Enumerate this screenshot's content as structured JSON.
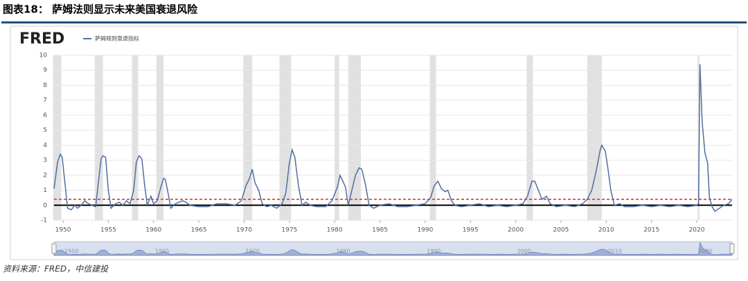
{
  "header": {
    "title": "图表18： 萨姆法则显示未来美国衰退风险"
  },
  "footer": {
    "source": "资料来源：FRED，中信建投"
  },
  "chart_data": {
    "type": "line",
    "logo": "FRED",
    "xlim": [
      1949,
      2023.9
    ],
    "ylim": [
      -1,
      10
    ],
    "xticks": [
      1950,
      1955,
      1960,
      1965,
      1970,
      1975,
      1980,
      1985,
      1990,
      1995,
      2000,
      2005,
      2010,
      2015,
      2020
    ],
    "yticks": [
      -1,
      0,
      1,
      2,
      3,
      4,
      5,
      6,
      7,
      8,
      9,
      10
    ],
    "navigator_xticks": [
      1950,
      1960,
      1970,
      1980,
      1990,
      2000,
      2010,
      2020
    ],
    "grid": true,
    "threshold": 0.4,
    "threshold_color": "#d62728",
    "recessions": [
      [
        1948.9,
        1949.8
      ],
      [
        1953.5,
        1954.4
      ],
      [
        1957.6,
        1958.3
      ],
      [
        1960.3,
        1961.1
      ],
      [
        1969.9,
        1970.9
      ],
      [
        1973.9,
        1975.2
      ],
      [
        1980.0,
        1980.5
      ],
      [
        1981.5,
        1982.9
      ],
      [
        1990.5,
        1991.2
      ],
      [
        2001.2,
        2001.9
      ],
      [
        2007.9,
        2009.5
      ],
      [
        2020.1,
        2020.3
      ]
    ],
    "series": [
      {
        "name": "萨姆规则衰退指标",
        "color": "#4e6ea1",
        "x": [
          1949.0,
          1949.4,
          1949.7,
          1949.9,
          1950.2,
          1950.5,
          1950.9,
          1951.3,
          1951.6,
          1952.0,
          1952.4,
          1952.8,
          1953.2,
          1953.6,
          1953.9,
          1954.2,
          1954.4,
          1954.7,
          1955.0,
          1955.3,
          1955.8,
          1956.2,
          1956.6,
          1957.0,
          1957.4,
          1957.8,
          1958.1,
          1958.4,
          1958.7,
          1959.0,
          1959.3,
          1959.7,
          1960.0,
          1960.4,
          1960.8,
          1961.1,
          1961.3,
          1961.6,
          1961.9,
          1962.4,
          1962.8,
          1963.2,
          1963.6,
          1964.0,
          1965,
          1966,
          1967,
          1968,
          1969,
          1969.7,
          1970.2,
          1970.6,
          1970.9,
          1971.2,
          1971.6,
          1972.0,
          1972.5,
          1973.0,
          1973.6,
          1974.2,
          1974.6,
          1975.0,
          1975.3,
          1975.6,
          1976.0,
          1976.4,
          1976.8,
          1977.3,
          1978,
          1979,
          1979.7,
          1980.3,
          1980.6,
          1980.9,
          1981.2,
          1981.5,
          1981.9,
          1982.3,
          1982.7,
          1983.0,
          1983.4,
          1983.8,
          1984.3,
          1985,
          1986,
          1987,
          1988,
          1989,
          1990,
          1990.6,
          1991.0,
          1991.4,
          1991.8,
          1992.2,
          1992.5,
          1992.9,
          1993.3,
          1994,
          1995,
          1996,
          1997,
          1998,
          1999,
          2000,
          2000.8,
          2001.3,
          2001.8,
          2002.1,
          2002.5,
          2002.9,
          2003.4,
          2003.8,
          2004.5,
          2005.5,
          2006.5,
          2007.4,
          2007.9,
          2008.4,
          2008.9,
          2009.3,
          2009.5,
          2009.9,
          2010.2,
          2010.5,
          2010.9,
          2011.5,
          2012,
          2013,
          2014,
          2015,
          2016,
          2017,
          2018,
          2019,
          2020.0,
          2020.2,
          2020.35,
          2020.6,
          2020.9,
          2021.2,
          2021.4,
          2021.7,
          2022.0,
          2022.5,
          2023.0,
          2023.5,
          2023.9
        ],
        "values": [
          1.1,
          2.9,
          3.4,
          3.2,
          1.5,
          -0.2,
          -0.3,
          0.0,
          -0.2,
          0.0,
          0.3,
          0.1,
          0.0,
          -0.1,
          1.5,
          3.1,
          3.3,
          3.2,
          1.0,
          -0.2,
          0.1,
          0.2,
          0.0,
          0.3,
          0.1,
          1.0,
          2.9,
          3.3,
          3.1,
          1.4,
          0.0,
          0.6,
          0.1,
          0.3,
          1.2,
          1.8,
          1.7,
          0.8,
          -0.2,
          0.1,
          0.2,
          0.3,
          0.2,
          0.0,
          -0.1,
          -0.1,
          0.1,
          0.1,
          0.0,
          0.3,
          1.3,
          1.8,
          2.4,
          1.5,
          1.0,
          0.1,
          -0.1,
          0.0,
          -0.2,
          0.1,
          0.8,
          2.8,
          3.7,
          3.2,
          1.3,
          0.0,
          0.2,
          0.0,
          -0.1,
          -0.1,
          0.3,
          1.2,
          2.0,
          1.6,
          1.2,
          0.0,
          1.0,
          2.0,
          2.5,
          2.4,
          1.4,
          0.0,
          -0.2,
          0.0,
          0.1,
          -0.1,
          -0.1,
          0.0,
          0.1,
          0.5,
          1.3,
          1.6,
          1.1,
          0.9,
          1.0,
          0.3,
          0.0,
          -0.1,
          0.0,
          0.1,
          -0.1,
          0.0,
          -0.1,
          0.0,
          0.1,
          0.6,
          1.6,
          1.6,
          1.0,
          0.4,
          0.6,
          0.1,
          -0.1,
          0.0,
          -0.1,
          0.1,
          0.4,
          1.0,
          2.3,
          3.6,
          4.0,
          3.6,
          2.4,
          1.0,
          0.0,
          0.1,
          -0.1,
          -0.1,
          0.0,
          -0.1,
          0.0,
          -0.1,
          0.0,
          -0.1,
          0.0,
          0.1,
          9.4,
          5.5,
          3.5,
          2.8,
          0.5,
          -0.1,
          -0.4,
          -0.2,
          0.0,
          0.1,
          0.4
        ]
      }
    ]
  }
}
